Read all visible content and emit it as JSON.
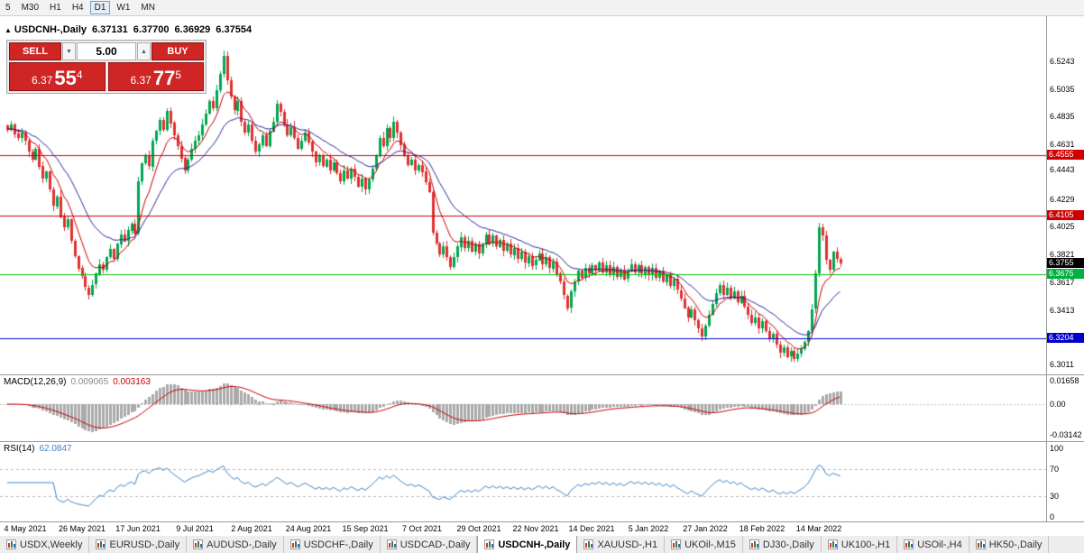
{
  "toolbar": {
    "timeframes": [
      {
        "label": "5",
        "active": false
      },
      {
        "label": "M30",
        "active": false
      },
      {
        "label": "H1",
        "active": false
      },
      {
        "label": "H4",
        "active": false
      },
      {
        "label": "D1",
        "active": true
      },
      {
        "label": "W1",
        "active": false
      },
      {
        "label": "MN",
        "active": false
      }
    ]
  },
  "ohlc_header": {
    "marker": "▲",
    "symbol": "USDCNH-,Daily",
    "open": "6.37131",
    "high": "6.37700",
    "low": "6.36929",
    "close": "6.37554"
  },
  "trade_panel": {
    "sell_button": "SELL",
    "buy_button": "BUY",
    "volume": "5.00",
    "spin_down": "▼",
    "spin_up": "▲",
    "sell_price": {
      "prefix": "6.37",
      "main": "55",
      "sup": "4"
    },
    "buy_price": {
      "prefix": "6.37",
      "main": "77",
      "sup": "5"
    }
  },
  "chart_data": {
    "type": "candlestick",
    "symbol": "USDCNH-",
    "timeframe": "Daily",
    "x_tick_labels": [
      "4 May 2021",
      "26 May 2021",
      "17 Jun 2021",
      "9 Jul 2021",
      "2 Aug 2021",
      "24 Aug 2021",
      "15 Sep 2021",
      "7 Oct 2021",
      "29 Oct 2021",
      "22 Nov 2021",
      "14 Dec 2021",
      "5 Jan 2022",
      "27 Jan 2022",
      "18 Feb 2022",
      "14 Mar 2022"
    ],
    "bars_per_tick": 16,
    "first_tick_bar_index": 5,
    "price_scale": {
      "max": 6.556,
      "min": 6.296
    },
    "y_axis_labels": [
      "6.5243",
      "6.5035",
      "6.4835",
      "6.4631",
      "6.4443",
      "6.4229",
      "6.4025",
      "6.3821",
      "6.3617",
      "6.3413",
      "6.3011"
    ],
    "closes": [
      6.474,
      6.478,
      6.471,
      6.468,
      6.472,
      6.466,
      6.458,
      6.452,
      6.46,
      6.447,
      6.438,
      6.443,
      6.43,
      6.418,
      6.425,
      6.41,
      6.402,
      6.408,
      6.392,
      6.381,
      6.372,
      6.366,
      6.358,
      6.353,
      6.36,
      6.368,
      6.375,
      6.371,
      6.38,
      6.386,
      6.379,
      6.39,
      6.397,
      6.392,
      6.4,
      6.405,
      6.398,
      6.436,
      6.449,
      6.455,
      6.447,
      6.466,
      6.473,
      6.481,
      6.474,
      6.488,
      6.479,
      6.47,
      6.462,
      6.453,
      6.444,
      6.452,
      6.46,
      6.466,
      6.47,
      6.478,
      6.486,
      6.495,
      6.49,
      6.503,
      6.515,
      6.528,
      6.51,
      6.498,
      6.488,
      6.495,
      6.48,
      6.472,
      6.478,
      6.466,
      6.458,
      6.463,
      6.47,
      6.462,
      6.473,
      6.48,
      6.493,
      6.487,
      6.478,
      6.47,
      6.476,
      6.468,
      6.46,
      6.466,
      6.472,
      6.465,
      6.458,
      6.45,
      6.455,
      6.447,
      6.452,
      6.444,
      6.45,
      6.442,
      6.436,
      6.444,
      6.438,
      6.445,
      6.439,
      6.432,
      6.438,
      6.43,
      6.437,
      6.445,
      6.455,
      6.468,
      6.462,
      6.475,
      6.468,
      6.48,
      6.472,
      6.463,
      6.455,
      6.448,
      6.452,
      6.444,
      6.448,
      6.443,
      6.435,
      6.428,
      6.398,
      6.39,
      6.382,
      6.388,
      6.38,
      6.373,
      6.38,
      6.388,
      6.395,
      6.387,
      6.392,
      6.384,
      6.39,
      6.383,
      6.39,
      6.397,
      6.39,
      6.396,
      6.388,
      6.393,
      6.385,
      6.39,
      6.382,
      6.387,
      6.379,
      6.384,
      6.376,
      6.381,
      6.374,
      6.378,
      6.383,
      6.375,
      6.38,
      6.372,
      6.377,
      6.368,
      6.362,
      6.352,
      6.343,
      6.355,
      6.362,
      6.37,
      6.365,
      6.372,
      6.368,
      6.374,
      6.37,
      6.376,
      6.369,
      6.374,
      6.367,
      6.373,
      6.366,
      6.371,
      6.364,
      6.37,
      6.375,
      6.369,
      6.374,
      6.368,
      6.373,
      6.367,
      6.372,
      6.365,
      6.37,
      6.362,
      6.367,
      6.359,
      6.364,
      6.356,
      6.35,
      6.343,
      6.336,
      6.342,
      6.334,
      6.328,
      6.322,
      6.33,
      6.338,
      6.346,
      6.354,
      6.36,
      6.353,
      6.358,
      6.35,
      6.355,
      6.347,
      6.352,
      6.344,
      6.338,
      6.332,
      6.336,
      6.328,
      6.333,
      6.326,
      6.32,
      6.324,
      6.316,
      6.31,
      6.314,
      6.307,
      6.311,
      6.305,
      6.309,
      6.313,
      6.318,
      6.326,
      6.342,
      6.368,
      6.402,
      6.396,
      6.378,
      6.371,
      6.384,
      6.379,
      6.3755
    ],
    "candle_colors": {
      "bull": "#00a651",
      "bear": "#e03030"
    },
    "moving_averages": [
      {
        "period": 8,
        "color": "#cc0000"
      },
      {
        "period": 21,
        "color": "#2a2a99"
      }
    ],
    "horizontal_lines": [
      {
        "price": 6.4555,
        "color": "#d00000"
      },
      {
        "price": 6.4105,
        "color": "#d00000"
      },
      {
        "price": 6.3675,
        "color": "#00c000"
      },
      {
        "price": 6.3204,
        "color": "#0000cc"
      }
    ],
    "price_badges": [
      {
        "text": "6.4555",
        "price": 6.4555,
        "bg": "#d00000"
      },
      {
        "text": "6.4105",
        "price": 6.4105,
        "bg": "#d00000"
      },
      {
        "text": "6.3755",
        "price": 6.37554,
        "bg": "#000000"
      },
      {
        "text": "6.3675",
        "price": 6.3675,
        "bg": "#00b040"
      },
      {
        "text": "6.3204",
        "price": 6.3204,
        "bg": "#0000cc"
      }
    ],
    "indicators": {
      "macd": {
        "label": "MACD(12,26,9)",
        "value_main": "0.009065",
        "value_signal": "0.003163",
        "fast": 12,
        "slow": 26,
        "signal": 9,
        "axis_labels": [
          "0.01658",
          "0.00",
          "-0.03142"
        ],
        "histogram_color": "#aaaaaa",
        "signal_color": "#cc0000"
      },
      "rsi": {
        "label": "RSI(14)",
        "value": "62.0847",
        "period": 14,
        "axis_labels": [
          "100",
          "70",
          "30",
          "0"
        ],
        "levels": [
          70,
          30
        ],
        "color": "#3d85c8"
      }
    }
  },
  "tabs": {
    "active_index": 5,
    "items": [
      {
        "label": "USDX,Weekly"
      },
      {
        "label": "EURUSD-,Daily"
      },
      {
        "label": "AUDUSD-,Daily"
      },
      {
        "label": "USDCHF-,Daily"
      },
      {
        "label": "USDCAD-,Daily"
      },
      {
        "label": "USDCNH-,Daily"
      },
      {
        "label": "XAUUSD-,H1"
      },
      {
        "label": "UKOil-,M15"
      },
      {
        "label": "DJ30-,Daily"
      },
      {
        "label": "UK100-,H1"
      },
      {
        "label": "USOil-,H4"
      },
      {
        "label": "HK50-,Daily"
      }
    ]
  }
}
